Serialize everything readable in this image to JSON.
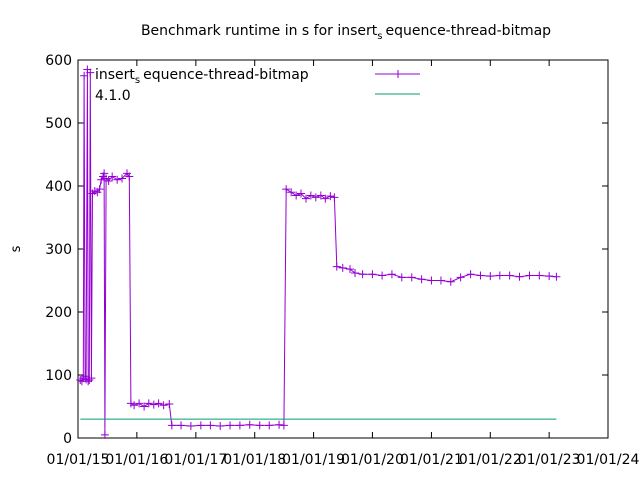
{
  "chart_data": {
    "type": "line",
    "title": {
      "main": "Benchmark runtime in s for insert",
      "sub": "s",
      "rest": "equence-thread-bitmap"
    },
    "ylabel": "s",
    "ylim": [
      0,
      600
    ],
    "yticks": [
      "0",
      "100",
      "200",
      "300",
      "400",
      "500",
      "600"
    ],
    "xlim": [
      "2015-01-01",
      "2024-01-01"
    ],
    "xticks": [
      "01/01/15",
      "01/01/16",
      "01/01/17",
      "01/01/18",
      "01/01/19",
      "01/01/20",
      "01/01/21",
      "01/01/22",
      "01/01/23",
      "01/01/24"
    ],
    "grid": false,
    "legend_position": "top",
    "legend": [
      {
        "name_main": "insert",
        "name_sub": "s",
        "name_rest": "equence-thread-bitmap",
        "color": "#9400d3",
        "style": "line-with-plus"
      },
      {
        "name_main": "4.1.0",
        "name_sub": "",
        "name_rest": "",
        "color": "#009e73",
        "style": "line"
      }
    ],
    "series": [
      {
        "color": "#9400d3",
        "marker": "plus",
        "points": [
          [
            "2015-01-15",
            92
          ],
          [
            "2015-01-25",
            90
          ],
          [
            "2015-02-03",
            95
          ],
          [
            "2015-02-08",
            575
          ],
          [
            "2015-02-14",
            98
          ],
          [
            "2015-02-20",
            93
          ],
          [
            "2015-02-28",
            585
          ],
          [
            "2015-03-05",
            90
          ],
          [
            "2015-03-12",
            92
          ],
          [
            "2015-03-18",
            580
          ],
          [
            "2015-03-25",
            95
          ],
          [
            "2015-04-01",
            388
          ],
          [
            "2015-04-15",
            392
          ],
          [
            "2015-05-01",
            390
          ],
          [
            "2015-05-15",
            395
          ],
          [
            "2015-05-25",
            410
          ],
          [
            "2015-06-05",
            415
          ],
          [
            "2015-06-12",
            420
          ],
          [
            "2015-06-17",
            5
          ],
          [
            "2015-06-24",
            412
          ],
          [
            "2015-07-10",
            408
          ],
          [
            "2015-08-01",
            415
          ],
          [
            "2015-09-01",
            410
          ],
          [
            "2015-10-01",
            412
          ],
          [
            "2015-11-01",
            420
          ],
          [
            "2015-11-15",
            415
          ],
          [
            "2015-11-25",
            55
          ],
          [
            "2015-12-15",
            52
          ],
          [
            "2016-01-15",
            55
          ],
          [
            "2016-02-15",
            50
          ],
          [
            "2016-03-15",
            55
          ],
          [
            "2016-04-15",
            53
          ],
          [
            "2016-05-15",
            55
          ],
          [
            "2016-06-15",
            52
          ],
          [
            "2016-07-20",
            54
          ],
          [
            "2016-08-05",
            20
          ],
          [
            "2016-10-01",
            20
          ],
          [
            "2016-12-01",
            19
          ],
          [
            "2017-02-01",
            20
          ],
          [
            "2017-04-01",
            20
          ],
          [
            "2017-06-01",
            19
          ],
          [
            "2017-08-01",
            20
          ],
          [
            "2017-10-01",
            20
          ],
          [
            "2017-12-01",
            21
          ],
          [
            "2018-02-01",
            20
          ],
          [
            "2018-04-01",
            20
          ],
          [
            "2018-06-01",
            21
          ],
          [
            "2018-07-01",
            20
          ],
          [
            "2018-07-15",
            395
          ],
          [
            "2018-08-15",
            390
          ],
          [
            "2018-09-15",
            385
          ],
          [
            "2018-10-15",
            388
          ],
          [
            "2018-11-15",
            380
          ],
          [
            "2018-12-15",
            385
          ],
          [
            "2019-01-15",
            382
          ],
          [
            "2019-02-15",
            385
          ],
          [
            "2019-03-15",
            380
          ],
          [
            "2019-04-15",
            384
          ],
          [
            "2019-05-10",
            382
          ],
          [
            "2019-05-25",
            272
          ],
          [
            "2019-07-01",
            270
          ],
          [
            "2019-08-15",
            268
          ],
          [
            "2019-09-15",
            262
          ],
          [
            "2019-11-01",
            260
          ],
          [
            "2020-01-01",
            260
          ],
          [
            "2020-03-01",
            258
          ],
          [
            "2020-05-01",
            260
          ],
          [
            "2020-07-01",
            255
          ],
          [
            "2020-09-01",
            255
          ],
          [
            "2020-11-01",
            252
          ],
          [
            "2021-01-01",
            250
          ],
          [
            "2021-03-01",
            250
          ],
          [
            "2021-05-01",
            248
          ],
          [
            "2021-07-01",
            255
          ],
          [
            "2021-09-01",
            260
          ],
          [
            "2021-11-01",
            258
          ],
          [
            "2022-01-01",
            257
          ],
          [
            "2022-03-01",
            258
          ],
          [
            "2022-05-01",
            258
          ],
          [
            "2022-07-01",
            256
          ],
          [
            "2022-09-01",
            258
          ],
          [
            "2022-11-01",
            258
          ],
          [
            "2023-01-01",
            257
          ],
          [
            "2023-02-15",
            256
          ]
        ]
      },
      {
        "color": "#009e73",
        "marker": "none",
        "points": [
          [
            "2015-01-15",
            30
          ],
          [
            "2023-02-15",
            30
          ]
        ]
      }
    ]
  }
}
